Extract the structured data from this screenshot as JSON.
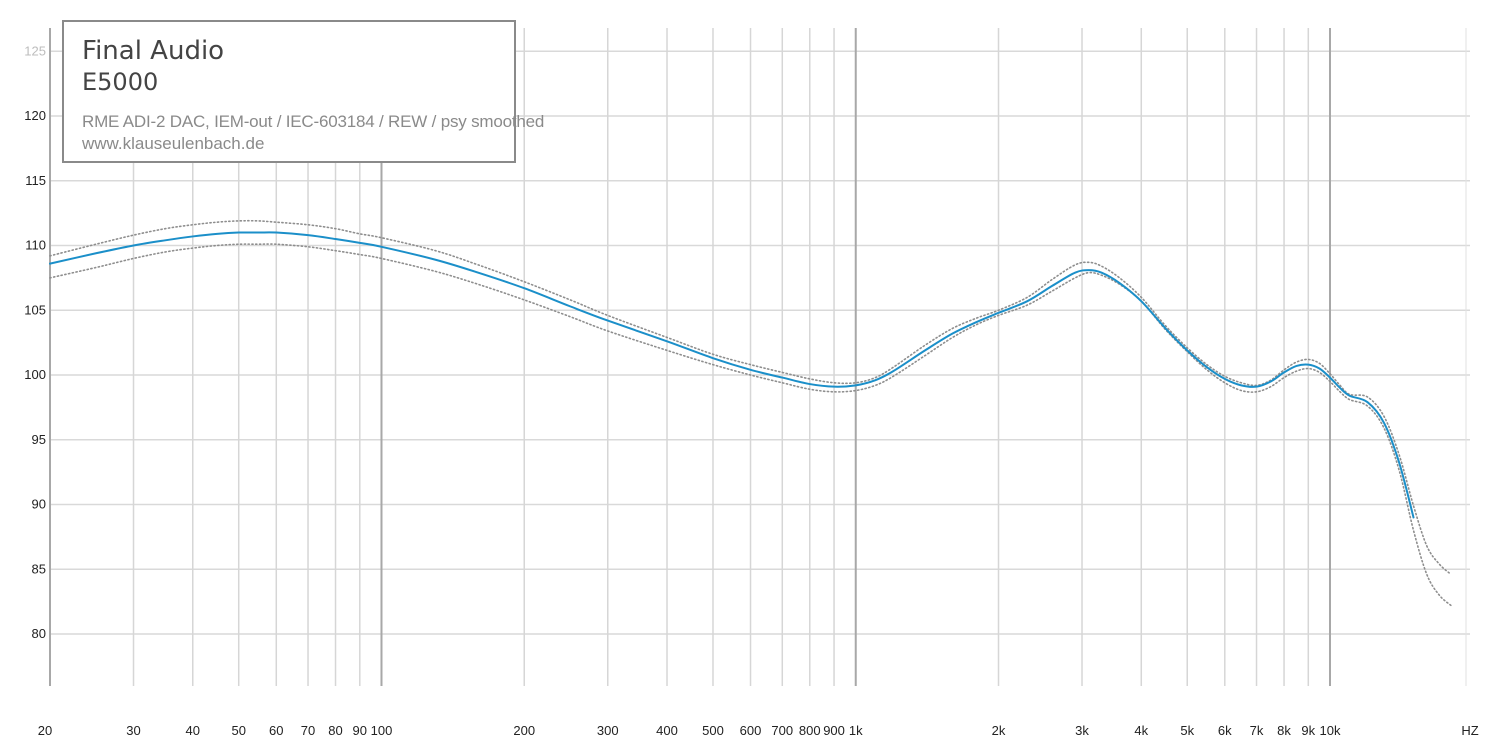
{
  "legend": {
    "brand": "Final Audio",
    "model": "E5000",
    "measurement": "RME ADI-2 DAC, IEM-out / IEC-603184 / REW / psy smoothed",
    "website": "www.klauseulenbach.de"
  },
  "chart_data": {
    "type": "line",
    "title": "Final Audio E5000",
    "xlabel": "HZ",
    "ylabel": "",
    "x_scale": "log",
    "xlim": [
      20,
      20000
    ],
    "ylim": [
      76,
      127
    ],
    "grid": true,
    "x_ticks": [
      20,
      30,
      40,
      50,
      60,
      70,
      80,
      90,
      100,
      200,
      300,
      400,
      500,
      600,
      700,
      800,
      900,
      1000,
      2000,
      3000,
      4000,
      5000,
      6000,
      7000,
      8000,
      9000,
      10000
    ],
    "x_tick_labels": [
      "20",
      "30",
      "40",
      "50",
      "60",
      "70",
      "80",
      "90",
      "100",
      "200",
      "300",
      "400",
      "500",
      "600",
      "700",
      "800",
      "900",
      "1k",
      "2k",
      "3k",
      "4k",
      "5k",
      "6k",
      "7k",
      "8k",
      "9k",
      "10k"
    ],
    "y_ticks": [
      80,
      85,
      90,
      95,
      100,
      105,
      110,
      115,
      120,
      125
    ],
    "x_axis_unit_label": "HZ",
    "series": [
      {
        "role": "average",
        "color": "#1b8fc9",
        "style": "solid",
        "x": [
          20,
          25,
          30,
          35,
          40,
          45,
          50,
          55,
          60,
          70,
          80,
          90,
          100,
          130,
          160,
          200,
          250,
          300,
          400,
          500,
          600,
          700,
          800,
          900,
          1000,
          1100,
          1200,
          1400,
          1600,
          1800,
          2000,
          2300,
          2600,
          2900,
          3100,
          3300,
          3600,
          4000,
          4500,
          5000,
          5500,
          6000,
          6500,
          7000,
          7500,
          8000,
          8500,
          9000,
          9500,
          10000,
          10500,
          11000,
          12000,
          13000,
          14000,
          15000
        ],
        "y": [
          108.6,
          109.4,
          110.0,
          110.4,
          110.7,
          110.9,
          111.0,
          111.0,
          111.0,
          110.8,
          110.5,
          110.2,
          109.9,
          108.9,
          107.9,
          106.7,
          105.3,
          104.2,
          102.6,
          101.3,
          100.4,
          99.8,
          99.3,
          99.1,
          99.2,
          99.6,
          100.3,
          101.9,
          103.2,
          104.1,
          104.8,
          105.7,
          106.9,
          107.9,
          108.1,
          107.9,
          107.1,
          105.7,
          103.6,
          101.9,
          100.6,
          99.7,
          99.2,
          99.1,
          99.5,
          100.2,
          100.7,
          100.8,
          100.5,
          99.8,
          99.0,
          98.4,
          97.9,
          96.3,
          93.2,
          89.0
        ]
      },
      {
        "role": "channel-upper",
        "color": "#8e8e8e",
        "style": "dotted",
        "x": [
          20,
          25,
          30,
          35,
          40,
          45,
          50,
          55,
          60,
          70,
          80,
          90,
          100,
          130,
          160,
          200,
          250,
          300,
          400,
          500,
          600,
          700,
          800,
          900,
          1000,
          1100,
          1200,
          1400,
          1600,
          1800,
          2000,
          2300,
          2600,
          2900,
          3100,
          3300,
          3600,
          4000,
          4500,
          5000,
          5500,
          6000,
          6500,
          7000,
          7500,
          8000,
          8500,
          9000,
          9500,
          10000,
          10500,
          11000,
          12000,
          13000,
          14000,
          15000,
          16000,
          17000,
          18000
        ],
        "y": [
          109.2,
          110.1,
          110.8,
          111.3,
          111.6,
          111.8,
          111.9,
          111.9,
          111.8,
          111.6,
          111.3,
          110.9,
          110.6,
          109.6,
          108.5,
          107.2,
          105.8,
          104.6,
          102.9,
          101.6,
          100.8,
          100.2,
          99.7,
          99.4,
          99.4,
          99.8,
          100.6,
          102.3,
          103.6,
          104.4,
          105.0,
          106.0,
          107.4,
          108.5,
          108.7,
          108.4,
          107.5,
          106.0,
          103.8,
          102.1,
          100.8,
          99.9,
          99.4,
          99.2,
          99.6,
          100.4,
          101.0,
          101.2,
          100.9,
          100.1,
          99.2,
          98.5,
          98.3,
          96.8,
          93.8,
          89.9,
          86.8,
          85.4,
          84.6
        ]
      },
      {
        "role": "channel-lower",
        "color": "#8e8e8e",
        "style": "dotted",
        "x": [
          20,
          25,
          30,
          35,
          40,
          45,
          50,
          55,
          60,
          70,
          80,
          90,
          100,
          130,
          160,
          200,
          250,
          300,
          400,
          500,
          600,
          700,
          800,
          900,
          1000,
          1100,
          1200,
          1400,
          1600,
          1800,
          2000,
          2300,
          2600,
          2900,
          3100,
          3300,
          3600,
          4000,
          4500,
          5000,
          5500,
          6000,
          6500,
          7000,
          7500,
          8000,
          8500,
          9000,
          9500,
          10000,
          10500,
          11000,
          12000,
          13000,
          14000,
          15000,
          16000,
          17000,
          18000
        ],
        "y": [
          107.5,
          108.3,
          109.0,
          109.5,
          109.8,
          110.0,
          110.1,
          110.1,
          110.1,
          109.9,
          109.6,
          109.3,
          109.0,
          108.0,
          107.0,
          105.8,
          104.5,
          103.4,
          101.9,
          100.8,
          100.0,
          99.4,
          98.9,
          98.7,
          98.8,
          99.2,
          99.9,
          101.5,
          102.9,
          103.9,
          104.6,
          105.4,
          106.5,
          107.5,
          107.9,
          107.7,
          107.0,
          105.7,
          103.5,
          101.8,
          100.4,
          99.4,
          98.8,
          98.7,
          99.1,
          99.8,
          100.3,
          100.5,
          100.2,
          99.5,
          98.7,
          98.1,
          97.6,
          95.9,
          92.6,
          88.0,
          84.6,
          83.0,
          82.2
        ]
      }
    ]
  }
}
